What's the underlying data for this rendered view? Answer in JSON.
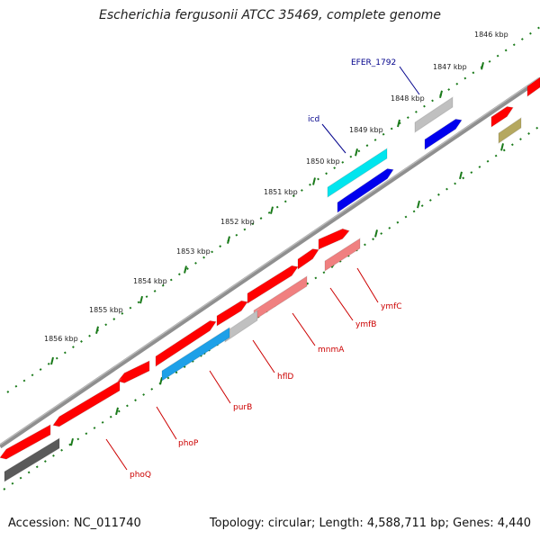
{
  "title": "Escherichia fergusonii ATCC 35469, complete genome",
  "footer": {
    "accession": "Accession: NC_011740",
    "topology": "Topology: circular; Length: 4,588,711 bp; Genes: 4,440"
  },
  "ticks": [
    {
      "label": "1846 kbp"
    },
    {
      "label": "1847 kbp"
    },
    {
      "label": "1848 kbp"
    },
    {
      "label": "1849 kbp"
    },
    {
      "label": "1850 kbp"
    },
    {
      "label": "1851 kbp"
    },
    {
      "label": "1852 kbp"
    },
    {
      "label": "1853 kbp"
    },
    {
      "label": "1854 kbp"
    },
    {
      "label": "1855 kbp"
    },
    {
      "label": "1856 kbp"
    }
  ],
  "gene_labels": {
    "efer": "EFER_1792",
    "icd": "icd",
    "ymfC": "ymfC",
    "ymfB": "ymfB",
    "mnmA": "mnmA",
    "hflD": "hflD",
    "purB": "purB",
    "phoP": "phoP",
    "phoQ": "phoQ"
  },
  "colors": {
    "backbone": "#8a8a8a",
    "tick": "#1a7a1a",
    "label_blue": "#00008b",
    "label_red": "#cc0000",
    "gene_red": "#ff0000",
    "gene_pink": "#f08080",
    "gene_cyan": "#00e5ee",
    "gene_skyblue": "#1ea0e8",
    "gene_blue": "#0000ee",
    "gene_gray": "#c0c0c0",
    "gene_darkgray": "#5a5a5a",
    "gene_olive": "#b5a860"
  }
}
